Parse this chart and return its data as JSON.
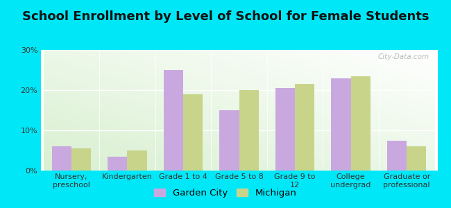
{
  "title": "School Enrollment by Level of School for Female Students",
  "categories": [
    "Nursery,\npreschool",
    "Kindergarten",
    "Grade 1 to 4",
    "Grade 5 to 8",
    "Grade 9 to\n12",
    "College\nundergrad",
    "Graduate or\nprofessional"
  ],
  "garden_city": [
    6.0,
    3.5,
    25.0,
    15.0,
    20.5,
    23.0,
    7.5
  ],
  "michigan": [
    5.5,
    5.0,
    19.0,
    20.0,
    21.5,
    23.5,
    6.0
  ],
  "garden_city_color": "#c9a8e0",
  "michigan_color": "#c8d48a",
  "background_color": "#00e8f8",
  "plot_bg_color_topleft": "#e8f5e2",
  "plot_bg_color_topright": "#f8fef8",
  "plot_bg_color_bottom": "#ffffff",
  "ylim": [
    0,
    30
  ],
  "yticks": [
    0,
    10,
    20,
    30
  ],
  "ytick_labels": [
    "0%",
    "10%",
    "20%",
    "30%"
  ],
  "bar_width": 0.35,
  "legend_labels": [
    "Garden City",
    "Michigan"
  ],
  "watermark": "City-Data.com",
  "title_fontsize": 13,
  "tick_fontsize": 8,
  "legend_fontsize": 9.5
}
